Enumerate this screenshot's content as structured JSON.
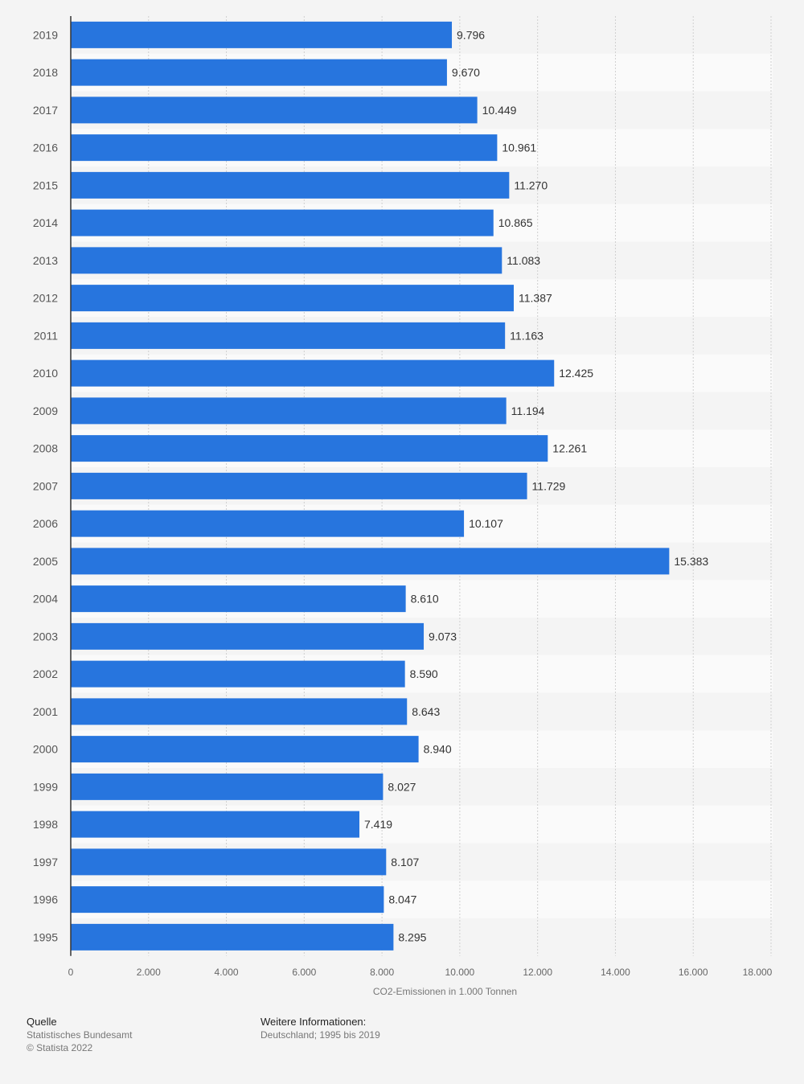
{
  "chart_data": {
    "type": "bar",
    "orientation": "horizontal",
    "categories": [
      "2019",
      "2018",
      "2017",
      "2016",
      "2015",
      "2014",
      "2013",
      "2012",
      "2011",
      "2010",
      "2009",
      "2008",
      "2007",
      "2006",
      "2005",
      "2004",
      "2003",
      "2002",
      "2001",
      "2000",
      "1999",
      "1998",
      "1997",
      "1996",
      "1995"
    ],
    "values": [
      9796,
      9670,
      10449,
      10961,
      11270,
      10865,
      11083,
      11387,
      11163,
      12425,
      11194,
      12261,
      11729,
      10107,
      15383,
      8610,
      9073,
      8590,
      8643,
      8940,
      8027,
      7419,
      8107,
      8047,
      8295
    ],
    "data_labels": [
      "9.796",
      "9.670",
      "10.449",
      "10.961",
      "11.270",
      "10.865",
      "11.083",
      "11.387",
      "11.163",
      "12.425",
      "11.194",
      "12.261",
      "11.729",
      "10.107",
      "15.383",
      "8.610",
      "9.073",
      "8.590",
      "8.643",
      "8.940",
      "8.027",
      "7.419",
      "8.107",
      "8.047",
      "8.295"
    ],
    "xlabel": "CO2-Emissionen in 1.000 Tonnen",
    "xlim": [
      0,
      18000
    ],
    "xticks": [
      0,
      2000,
      4000,
      6000,
      8000,
      10000,
      12000,
      14000,
      16000,
      18000
    ],
    "xtick_labels": [
      "0",
      "2.000",
      "4.000",
      "6.000",
      "8.000",
      "10.000",
      "12.000",
      "14.000",
      "16.000",
      "18.000"
    ],
    "grid": true,
    "bar_color": "#2775de"
  },
  "footer": {
    "source_heading": "Quelle",
    "source": "Statistisches Bundesamt",
    "copyright": "© Statista 2022",
    "info_heading": "Weitere Informationen:",
    "info": "Deutschland; 1995 bis 2019"
  }
}
